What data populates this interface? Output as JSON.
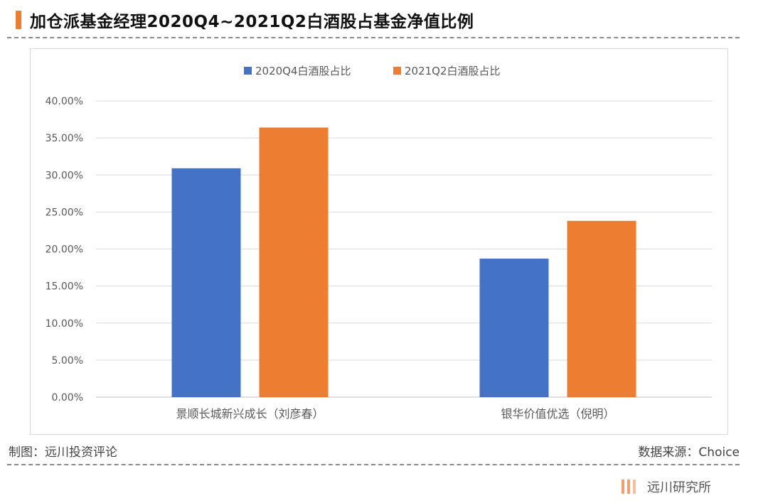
{
  "header": {
    "title": "加仓派基金经理2020Q4~2021Q2白酒股占基金净值比例"
  },
  "footer": {
    "source_left": "制图：远川投资评论",
    "source_right": "数据来源：Choice",
    "brand": "远川研究所"
  },
  "colors": {
    "accent": "#ED7D31",
    "series1": "#4472C4",
    "series2": "#ED7D31"
  },
  "chart_data": {
    "type": "bar",
    "categories": [
      "景顺长城新兴成长（刘彦春）",
      "银华价值优选（倪明）"
    ],
    "series": [
      {
        "name": "2020Q4白酒股占比",
        "values": [
          30.9,
          18.7
        ]
      },
      {
        "name": "2021Q2白酒股占比",
        "values": [
          36.4,
          23.8
        ]
      }
    ],
    "yticks": [
      "0.00%",
      "5.00%",
      "10.00%",
      "15.00%",
      "20.00%",
      "25.00%",
      "30.00%",
      "35.00%",
      "40.00%"
    ],
    "ylim": [
      0,
      40
    ],
    "legend_position": "top",
    "grid": true
  }
}
